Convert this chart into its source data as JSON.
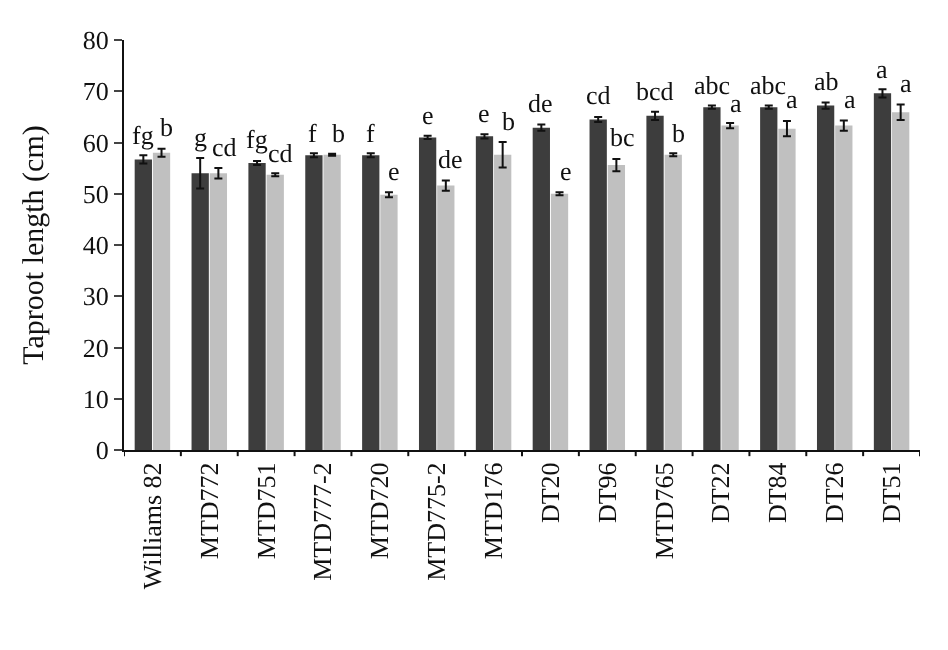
{
  "chart_data": {
    "type": "bar",
    "ylabel": "Taproot length (cm)",
    "categories": [
      "Williams 82",
      "MTD772",
      "MTD751",
      "MTD777-2",
      "MTD720",
      "MTD775-2",
      "MTD176",
      "DT20",
      "DT96",
      "MTD765",
      "DT22",
      "DT84",
      "DT26",
      "DT51"
    ],
    "series": [
      {
        "color": "#3d3d3d",
        "values": [
          56.7,
          54,
          56,
          57.5,
          57.5,
          61,
          61.2,
          62.9,
          64.5,
          65.2,
          66.9,
          66.9,
          67.2,
          69.6
        ],
        "errors": [
          0.8,
          3,
          0.4,
          0.4,
          0.4,
          0.3,
          0.4,
          0.6,
          0.5,
          0.8,
          0.3,
          0.3,
          0.6,
          0.8
        ],
        "value_labels": [
          "fg",
          "g",
          "fg",
          "f",
          "f",
          "e",
          "e",
          "de",
          "cd",
          "bcd",
          "abc",
          "abc",
          "ab",
          "a"
        ]
      },
      {
        "color": "#c0c0c0",
        "values": [
          58,
          54,
          53.7,
          57.6,
          49.8,
          51.6,
          57.6,
          50,
          55.6,
          57.6,
          63.3,
          62.7,
          63.3,
          65.9
        ],
        "errors": [
          0.8,
          1,
          0.3,
          0.2,
          0.5,
          1,
          2.5,
          0.3,
          1.2,
          0.3,
          0.5,
          1.5,
          1,
          1.5
        ],
        "value_labels": [
          "b",
          "cd",
          "cd",
          "b",
          "e",
          "de",
          "b",
          "e",
          "bc",
          "b",
          "a",
          "a",
          "a",
          "a"
        ]
      }
    ],
    "ylim": [
      0,
      80
    ],
    "yticks": [
      0,
      10,
      20,
      30,
      40,
      50,
      60,
      70,
      80
    ]
  }
}
